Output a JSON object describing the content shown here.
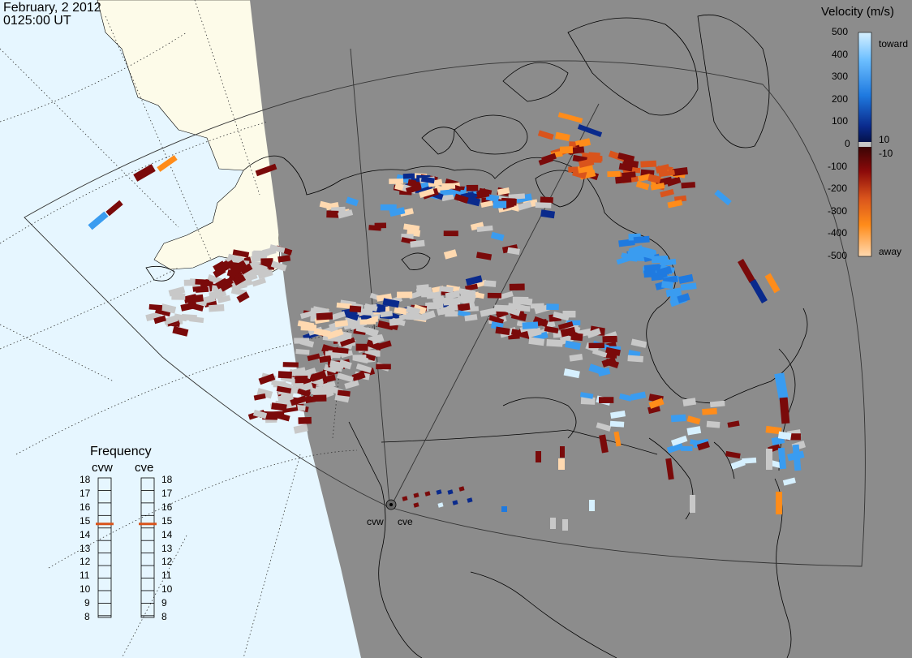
{
  "header": {
    "date": "February, 2 2012",
    "time": "0125:00 UT"
  },
  "colorbar": {
    "title": "Velocity (m/s)",
    "ticks": [
      "500",
      "400",
      "300",
      "200",
      "100",
      "0",
      "-100",
      "-200",
      "-300",
      "-400",
      "-500"
    ],
    "inner_ticks": [
      "10",
      "-10"
    ],
    "toward_label": "toward",
    "away_label": "away",
    "colors": {
      "toward_light": "#d6f0ff",
      "toward_mid": "#3a9cf0",
      "toward_dark": "#0a2a8c",
      "zero": "#c8c8c8",
      "away_dark": "#7a0a0a",
      "away_mid": "#d9541c",
      "away_orange": "#ff8c1a",
      "away_light": "#ffd9b0"
    }
  },
  "frequency": {
    "title": "Frequency",
    "radars": [
      {
        "name": "cvw",
        "value": 15
      },
      {
        "name": "cve",
        "value": 15
      }
    ],
    "scale": [
      "18",
      "17",
      "16",
      "15",
      "14",
      "13",
      "12",
      "11",
      "10",
      "9",
      "8"
    ]
  },
  "radars": {
    "cvw_label": "cvw",
    "cve_label": "cve"
  },
  "map_colors": {
    "ocean": "#e6f6ff",
    "land_day": "#fdfbe9",
    "night": "#8c8c8c",
    "coast": "#000000",
    "ground_scatter": "#c8c8c8"
  }
}
